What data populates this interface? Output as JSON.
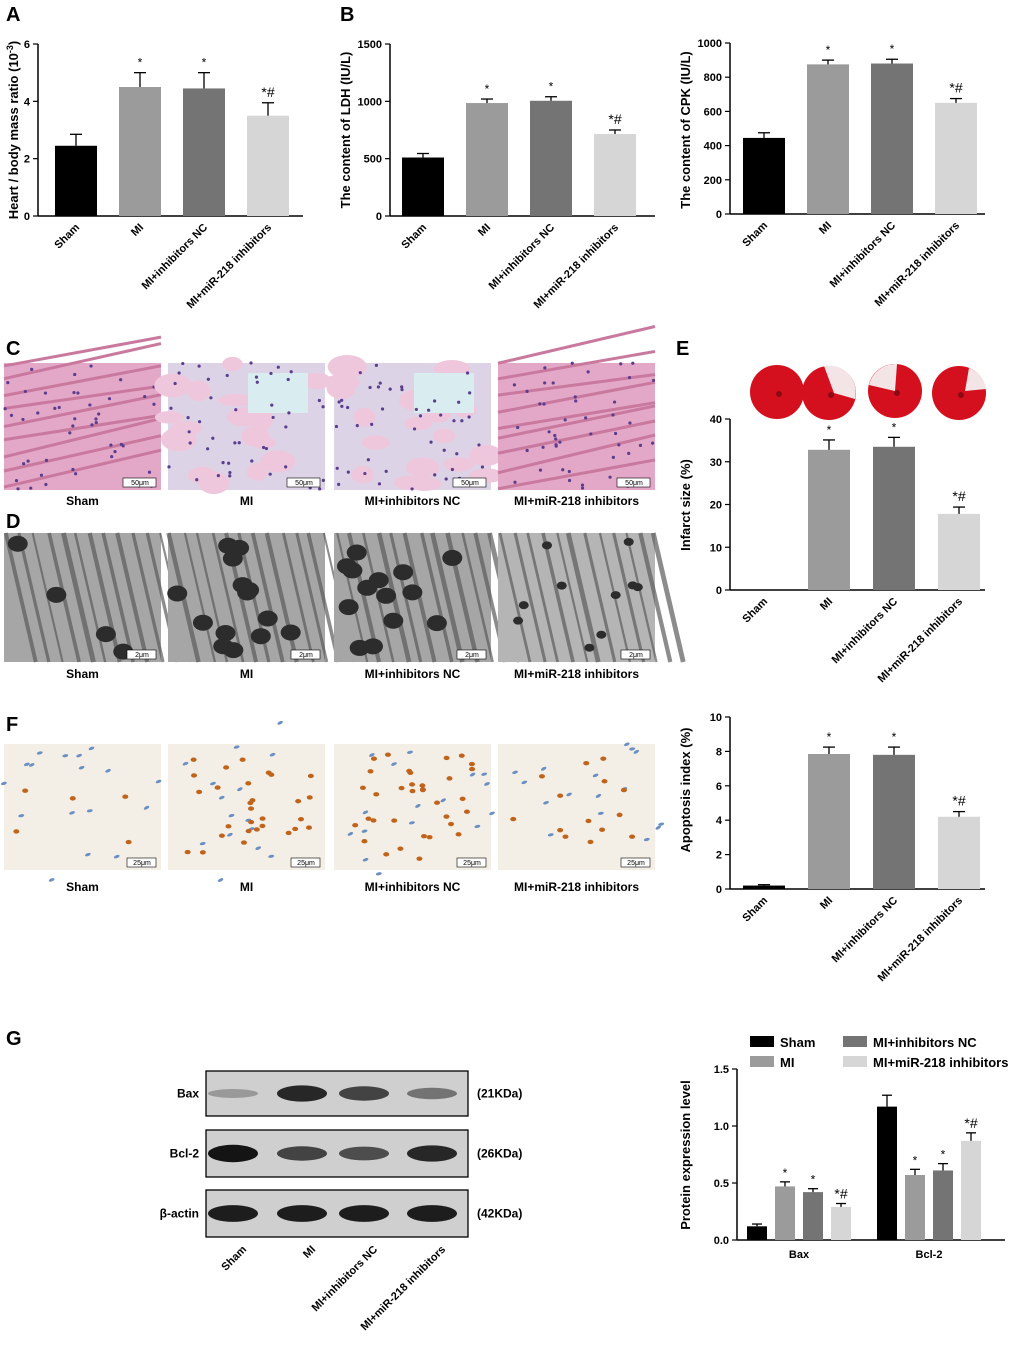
{
  "colors": {
    "sham": "#000000",
    "mi": "#9b9b9b",
    "mi_nc": "#747474",
    "mi_inh": "#d6d6d6",
    "he_pink": "#e5a8c8",
    "tem_gray": "#8a8a8a",
    "tunel_brown": "#c0641c",
    "tunel_blue": "#6a8fc4",
    "ttc_red": "#d4101e"
  },
  "panel_letters": {
    "A": "A",
    "B": "B",
    "C": "C",
    "D": "D",
    "E": "E",
    "F": "F",
    "G": "G"
  },
  "groups": [
    "Sham",
    "MI",
    "MI+inhibitors NC",
    "MI+miR-218 inhibitors"
  ],
  "histology": {
    "C": {
      "scale": "50μm"
    },
    "D": {
      "scale": "2μm"
    },
    "F": {
      "scale": "25μm"
    }
  },
  "western": {
    "bands": [
      {
        "name": "Bax",
        "size": "(21KDa)",
        "intensity": [
          0.25,
          0.85,
          0.7,
          0.45
        ]
      },
      {
        "name": "Bcl-2",
        "size": "(26KDa)",
        "intensity": [
          0.95,
          0.7,
          0.65,
          0.85
        ]
      },
      {
        "name": "β-actin",
        "size": "(42KDa)",
        "intensity": [
          0.9,
          0.9,
          0.9,
          0.9
        ]
      }
    ]
  },
  "chart_data": [
    {
      "id": "A",
      "type": "bar",
      "categories": [
        "Sham",
        "MI",
        "MI+inhibitors NC",
        "MI+miR-218 inhibitors"
      ],
      "values": [
        2.45,
        4.5,
        4.45,
        3.5
      ],
      "errors": [
        0.4,
        0.5,
        0.55,
        0.45
      ],
      "annotations": [
        "",
        "*",
        "*",
        "*#"
      ],
      "ylabel": "Heart / body mass ratio (10",
      "ylabel_sup": "-3",
      "ylabel_end": ")",
      "ylim": [
        0,
        6
      ],
      "yticks": [
        0,
        2,
        4,
        6
      ]
    },
    {
      "id": "B1",
      "type": "bar",
      "categories": [
        "Sham",
        "MI",
        "MI+inhibitors NC",
        "MI+miR-218 inhibitors"
      ],
      "values": [
        510,
        985,
        1005,
        715
      ],
      "errors": [
        35,
        35,
        35,
        35
      ],
      "annotations": [
        "",
        "*",
        "*",
        "*#"
      ],
      "ylabel": "The content of LDH (IU/L)",
      "ylim": [
        0,
        1500
      ],
      "yticks": [
        0,
        500,
        1000,
        1500
      ]
    },
    {
      "id": "B2",
      "type": "bar",
      "categories": [
        "Sham",
        "MI",
        "MI+inhibitors NC",
        "MI+miR-218 inhibitors"
      ],
      "values": [
        445,
        875,
        880,
        650
      ],
      "errors": [
        30,
        25,
        25,
        25
      ],
      "annotations": [
        "",
        "*",
        "*",
        "*#"
      ],
      "ylabel": "The content of CPK (IU/L)",
      "ylim": [
        0,
        1000
      ],
      "yticks": [
        0,
        200,
        400,
        600,
        800,
        1000
      ]
    },
    {
      "id": "E",
      "type": "bar",
      "categories": [
        "Sham",
        "MI",
        "MI+inhibitors NC",
        "MI+miR-218 inhibitors"
      ],
      "values": [
        0,
        32.8,
        33.5,
        17.8
      ],
      "errors": [
        0,
        2.3,
        2.2,
        1.6
      ],
      "annotations": [
        "",
        "*",
        "*",
        "*#"
      ],
      "ylabel": "Infarct size (%)",
      "ylim": [
        0,
        40
      ],
      "yticks": [
        0,
        10,
        20,
        30,
        40
      ]
    },
    {
      "id": "F",
      "type": "bar",
      "categories": [
        "Sham",
        "MI",
        "MI+inhibitors NC",
        "MI+miR-218 inhibitors"
      ],
      "values": [
        0.2,
        7.85,
        7.8,
        4.2
      ],
      "errors": [
        0.05,
        0.4,
        0.45,
        0.3
      ],
      "annotations": [
        "",
        "*",
        "*",
        "*#"
      ],
      "ylabel": "Apoptosis index (%)",
      "ylim": [
        0,
        10
      ],
      "yticks": [
        0,
        2,
        4,
        6,
        8,
        10
      ]
    },
    {
      "id": "G",
      "type": "bar",
      "categories": [
        "Bax",
        "Bcl-2"
      ],
      "series": [
        {
          "name": "Sham",
          "values": [
            0.12,
            1.17
          ],
          "errors": [
            0.02,
            0.1
          ],
          "annotations": [
            "",
            ""
          ]
        },
        {
          "name": "MI",
          "values": [
            0.47,
            0.57
          ],
          "errors": [
            0.04,
            0.05
          ],
          "annotations": [
            "*",
            "*"
          ]
        },
        {
          "name": "MI+inhibitors NC",
          "values": [
            0.42,
            0.61
          ],
          "errors": [
            0.03,
            0.06
          ],
          "annotations": [
            "*",
            "*"
          ]
        },
        {
          "name": "MI+miR-218 inhibitors",
          "values": [
            0.29,
            0.87
          ],
          "errors": [
            0.03,
            0.07
          ],
          "annotations": [
            "*#",
            "*#"
          ]
        }
      ],
      "ylabel": "Protein expression level",
      "ylim": [
        0,
        1.5
      ],
      "yticks": [
        "0.0",
        "0.5",
        "1.0",
        "1.5"
      ],
      "legend": "top"
    }
  ]
}
